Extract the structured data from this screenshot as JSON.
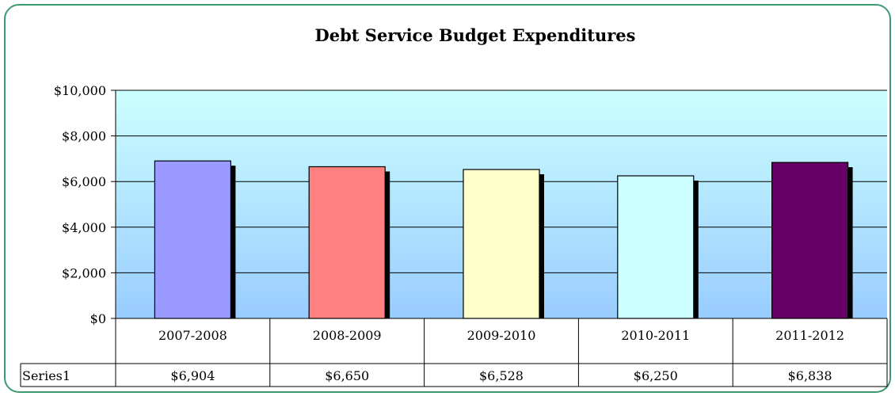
{
  "chart_data": {
    "type": "bar",
    "title": "Debt Service Budget Expenditures",
    "categories": [
      "2007-2008",
      "2008-2009",
      "2009-2010",
      "2010-2011",
      "2011-2012"
    ],
    "series": [
      {
        "name": "Series1",
        "values": [
          6904,
          6650,
          6528,
          6250,
          6838
        ],
        "value_labels": [
          "$6,904",
          "$6,650",
          "$6,528",
          "$6,250",
          "$6,838"
        ]
      }
    ],
    "bar_colors": [
      "#9999ff",
      "#ff8080",
      "#ffffcc",
      "#ccffff",
      "#660066"
    ],
    "ylim": [
      0,
      10000
    ],
    "yticks": [
      0,
      2000,
      4000,
      6000,
      8000,
      10000
    ],
    "ytick_labels": [
      "$0",
      "$2,000",
      "$4,000",
      "$6,000",
      "$8,000",
      "$10,000"
    ],
    "grid": true,
    "legend": "data table below plot",
    "plot_gradient": [
      "#ccffff",
      "#99ccff"
    ],
    "frame_color": "#3d9970"
  }
}
